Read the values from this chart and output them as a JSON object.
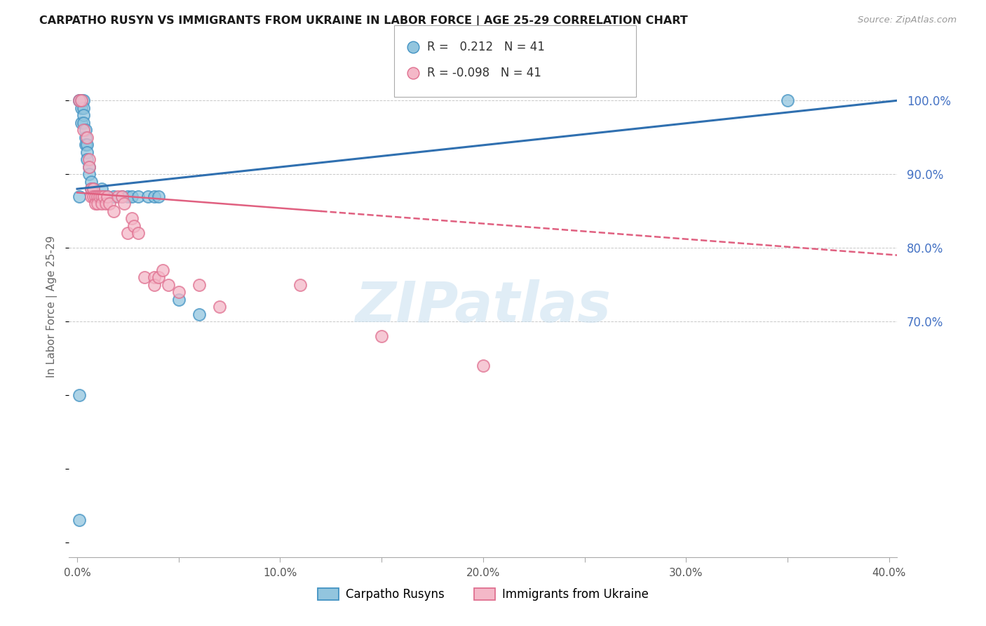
{
  "title": "CARPATHO RUSYN VS IMMIGRANTS FROM UKRAINE IN LABOR FORCE | AGE 25-29 CORRELATION CHART",
  "source": "Source: ZipAtlas.com",
  "ylabel": "In Labor Force | Age 25-29",
  "legend_labels": [
    "Carpatho Rusyns",
    "Immigrants from Ukraine"
  ],
  "blue_color": "#92c5de",
  "pink_color": "#f4b8c8",
  "blue_edge_color": "#4393c3",
  "pink_edge_color": "#e07090",
  "blue_line_color": "#3070b0",
  "pink_line_color": "#e06080",
  "right_axis_color": "#4472c4",
  "watermark_color": "#c8dff0",
  "watermark": "ZIPatlas",
  "xlim": [
    -0.004,
    0.404
  ],
  "ylim": [
    0.38,
    1.06
  ],
  "yticks_right": [
    0.7,
    0.8,
    0.9,
    1.0
  ],
  "ytick_labels_right": [
    "70.0%",
    "80.0%",
    "90.0%",
    "100.0%"
  ],
  "xticks": [
    0.0,
    0.05,
    0.1,
    0.15,
    0.2,
    0.25,
    0.3,
    0.35,
    0.4
  ],
  "xtick_labels": [
    "0.0%",
    "",
    "10.0%",
    "",
    "20.0%",
    "",
    "30.0%",
    "",
    "40.0%"
  ],
  "blue_scatter_x": [
    0.001,
    0.001,
    0.002,
    0.002,
    0.002,
    0.002,
    0.003,
    0.003,
    0.003,
    0.003,
    0.004,
    0.004,
    0.004,
    0.005,
    0.005,
    0.005,
    0.006,
    0.006,
    0.007,
    0.007,
    0.008,
    0.009,
    0.01,
    0.011,
    0.012,
    0.013,
    0.015,
    0.018,
    0.022,
    0.025,
    0.027,
    0.03,
    0.035,
    0.038,
    0.04,
    0.05,
    0.06,
    0.35,
    0.001,
    0.001,
    0.001
  ],
  "blue_scatter_y": [
    1.0,
    1.0,
    1.0,
    1.0,
    0.99,
    0.97,
    1.0,
    0.99,
    0.98,
    0.97,
    0.96,
    0.95,
    0.94,
    0.94,
    0.93,
    0.92,
    0.91,
    0.9,
    0.89,
    0.88,
    0.88,
    0.87,
    0.87,
    0.87,
    0.88,
    0.87,
    0.87,
    0.87,
    0.87,
    0.87,
    0.87,
    0.87,
    0.87,
    0.87,
    0.87,
    0.73,
    0.71,
    1.0,
    0.6,
    0.43,
    0.87
  ],
  "pink_scatter_x": [
    0.001,
    0.002,
    0.003,
    0.005,
    0.006,
    0.006,
    0.007,
    0.007,
    0.008,
    0.008,
    0.009,
    0.009,
    0.01,
    0.01,
    0.011,
    0.012,
    0.012,
    0.013,
    0.014,
    0.015,
    0.016,
    0.018,
    0.02,
    0.022,
    0.023,
    0.025,
    0.027,
    0.028,
    0.03,
    0.033,
    0.038,
    0.038,
    0.04,
    0.042,
    0.045,
    0.05,
    0.06,
    0.07,
    0.11,
    0.15,
    0.2
  ],
  "pink_scatter_y": [
    1.0,
    1.0,
    0.96,
    0.95,
    0.92,
    0.91,
    0.88,
    0.87,
    0.88,
    0.87,
    0.87,
    0.86,
    0.87,
    0.86,
    0.87,
    0.87,
    0.86,
    0.87,
    0.86,
    0.87,
    0.86,
    0.85,
    0.87,
    0.87,
    0.86,
    0.82,
    0.84,
    0.83,
    0.82,
    0.76,
    0.76,
    0.75,
    0.76,
    0.77,
    0.75,
    0.74,
    0.75,
    0.72,
    0.75,
    0.68,
    0.64
  ],
  "blue_trend_x0": 0.0,
  "blue_trend_x1": 0.404,
  "blue_trend_y0": 0.88,
  "blue_trend_y1": 1.0,
  "pink_trend_x0": 0.0,
  "pink_trend_x1": 0.404,
  "pink_trend_y0": 0.875,
  "pink_trend_y1": 0.79,
  "legend_r_blue": "0.212",
  "legend_r_pink": "-0.098",
  "legend_n": "41"
}
